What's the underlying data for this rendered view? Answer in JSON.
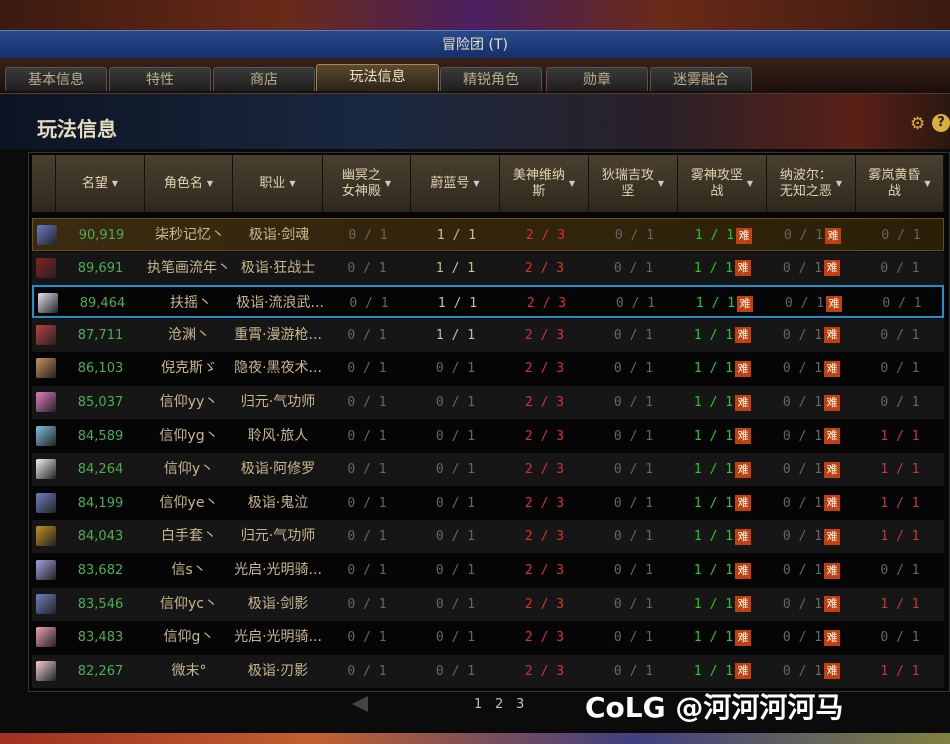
{
  "window": {
    "title": "冒险团 (T)"
  },
  "tabs": [
    "基本信息",
    "特性",
    "商店",
    "玩法信息",
    "精锐角色",
    "勋章",
    "迷雾融合"
  ],
  "active_tab": 3,
  "panel": {
    "title": "玩法信息",
    "settings_icon": "gear-icon",
    "help_icon": "?"
  },
  "columns": [
    "名望",
    "角色名",
    "职业",
    "幽冥之\n女神殿",
    "蔚蓝号",
    "美神维纳\n斯",
    "狄瑞吉攻\n坚",
    "雾神攻坚\n战",
    "纳波尔：\n无知之恶",
    "雾岚黄昏\n战"
  ],
  "hard_badge": "难",
  "rows": [
    [
      "90,919",
      "柒秒记忆丶",
      "极诣·剑魂",
      "0 / 1",
      "1 / 1",
      "2 / 3",
      "0 / 1",
      "1 / 1",
      "0 / 1",
      "0 / 1"
    ],
    [
      "89,691",
      "执笔画流年丶",
      "极诣·狂战士",
      "0 / 1",
      "1 / 1",
      "2 / 3",
      "0 / 1",
      "1 / 1",
      "0 / 1",
      "0 / 1"
    ],
    [
      "89,464",
      "扶摇丶",
      "极诣·流浪武...",
      "0 / 1",
      "1 / 1",
      "2 / 3",
      "0 / 1",
      "1 / 1",
      "0 / 1",
      "0 / 1"
    ],
    [
      "87,711",
      "沧渊丶",
      "重霄·漫游枪...",
      "0 / 1",
      "1 / 1",
      "2 / 3",
      "0 / 1",
      "1 / 1",
      "0 / 1",
      "0 / 1"
    ],
    [
      "86,103",
      "倪克斯ゞ",
      "隐夜·黑夜术...",
      "0 / 1",
      "0 / 1",
      "2 / 3",
      "0 / 1",
      "1 / 1",
      "0 / 1",
      "0 / 1"
    ],
    [
      "85,037",
      "信仰yy丶",
      "归元·气功师",
      "0 / 1",
      "0 / 1",
      "2 / 3",
      "0 / 1",
      "1 / 1",
      "0 / 1",
      "0 / 1"
    ],
    [
      "84,589",
      "信仰yg丶",
      "聆风·旅人",
      "0 / 1",
      "0 / 1",
      "2 / 3",
      "0 / 1",
      "1 / 1",
      "0 / 1",
      "1 / 1"
    ],
    [
      "84,264",
      "信仰y丶",
      "极诣·阿修罗",
      "0 / 1",
      "0 / 1",
      "2 / 3",
      "0 / 1",
      "1 / 1",
      "0 / 1",
      "1 / 1"
    ],
    [
      "84,199",
      "信仰ye丶",
      "极诣·鬼泣",
      "0 / 1",
      "0 / 1",
      "2 / 3",
      "0 / 1",
      "1 / 1",
      "0 / 1",
      "1 / 1"
    ],
    [
      "84,043",
      "白手套丶",
      "归元·气功师",
      "0 / 1",
      "0 / 1",
      "2 / 3",
      "0 / 1",
      "1 / 1",
      "0 / 1",
      "1 / 1"
    ],
    [
      "83,682",
      "信s丶",
      "光启·光明骑...",
      "0 / 1",
      "0 / 1",
      "2 / 3",
      "0 / 1",
      "1 / 1",
      "0 / 1",
      "0 / 1"
    ],
    [
      "83,546",
      "信仰yc丶",
      "极诣·剑影",
      "0 / 1",
      "0 / 1",
      "2 / 3",
      "0 / 1",
      "1 / 1",
      "0 / 1",
      "1 / 1"
    ],
    [
      "83,483",
      "信仰g丶",
      "光启·光明骑...",
      "0 / 1",
      "0 / 1",
      "2 / 3",
      "0 / 1",
      "1 / 1",
      "0 / 1",
      "0 / 1"
    ],
    [
      "82,267",
      "微末°",
      "极诣·刃影",
      "0 / 1",
      "0 / 1",
      "2 / 3",
      "0 / 1",
      "1 / 1",
      "0 / 1",
      "1 / 1"
    ]
  ],
  "selected_row": 2,
  "highlight_row": 0,
  "pagination": {
    "pages": [
      "1",
      "2",
      "3"
    ],
    "current": "1"
  },
  "watermark": "CoLG @河河河河马",
  "colors": {
    "green": "#22cc22",
    "red": "#d83030",
    "accent": "#1e90d0"
  }
}
